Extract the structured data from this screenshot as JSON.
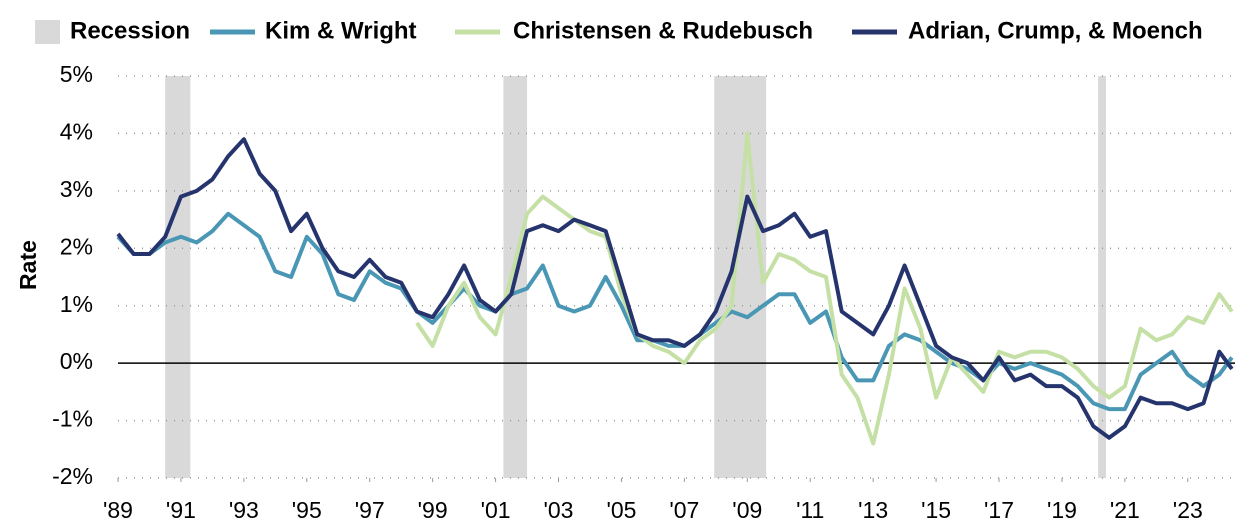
{
  "chart_data": {
    "type": "line",
    "y_label": "Rate",
    "recession_label": "Recession",
    "recession_color": "#d9d9d9",
    "recessions": [
      [
        1990.5,
        1991.3
      ],
      [
        2001.25,
        2002.0
      ],
      [
        2007.95,
        2009.6
      ],
      [
        2020.15,
        2020.4
      ]
    ],
    "xlim": [
      1989,
      2024.5
    ],
    "ylim": [
      -2,
      5
    ],
    "grid": true,
    "legend": "top",
    "xticks": [
      {
        "value": 1989,
        "label": "'89"
      },
      {
        "value": 1991,
        "label": "'91"
      },
      {
        "value": 1993,
        "label": "'93"
      },
      {
        "value": 1995,
        "label": "'95"
      },
      {
        "value": 1997,
        "label": "'97"
      },
      {
        "value": 1999,
        "label": "'99"
      },
      {
        "value": 2001,
        "label": "'01"
      },
      {
        "value": 2003,
        "label": "'03"
      },
      {
        "value": 2005,
        "label": "'05"
      },
      {
        "value": 2007,
        "label": "'07"
      },
      {
        "value": 2009,
        "label": "'09"
      },
      {
        "value": 2011,
        "label": "'11"
      },
      {
        "value": 2013,
        "label": "'13"
      },
      {
        "value": 2015,
        "label": "'15"
      },
      {
        "value": 2017,
        "label": "'17"
      },
      {
        "value": 2019,
        "label": "'19"
      },
      {
        "value": 2021,
        "label": "'21"
      },
      {
        "value": 2023,
        "label": "'23"
      }
    ],
    "yticks": [
      {
        "value": -2,
        "label": "-2%"
      },
      {
        "value": -1,
        "label": "-1%"
      },
      {
        "value": 0,
        "label": "0%"
      },
      {
        "value": 1,
        "label": "1%"
      },
      {
        "value": 2,
        "label": "2%"
      },
      {
        "value": 3,
        "label": "3%"
      },
      {
        "value": 4,
        "label": "4%"
      },
      {
        "value": 5,
        "label": "5%"
      }
    ],
    "x": [
      1989.0,
      1989.5,
      1990.0,
      1990.5,
      1991.0,
      1991.5,
      1992.0,
      1992.5,
      1993.0,
      1993.5,
      1994.0,
      1994.5,
      1995.0,
      1995.5,
      1996.0,
      1996.5,
      1997.0,
      1997.5,
      1998.0,
      1998.5,
      1999.0,
      1999.5,
      2000.0,
      2000.5,
      2001.0,
      2001.5,
      2002.0,
      2002.5,
      2003.0,
      2003.5,
      2004.0,
      2004.5,
      2005.0,
      2005.5,
      2006.0,
      2006.5,
      2007.0,
      2007.5,
      2008.0,
      2008.5,
      2009.0,
      2009.5,
      2010.0,
      2010.5,
      2011.0,
      2011.5,
      2012.0,
      2012.5,
      2013.0,
      2013.5,
      2014.0,
      2014.5,
      2015.0,
      2015.5,
      2016.0,
      2016.5,
      2017.0,
      2017.5,
      2018.0,
      2018.5,
      2019.0,
      2019.5,
      2020.0,
      2020.5,
      2021.0,
      2021.5,
      2022.0,
      2022.5,
      2023.0,
      2023.5,
      2024.0,
      2024.4
    ],
    "series": [
      {
        "name": "Kim & Wright",
        "color": "#4a97b5",
        "values": [
          2.2,
          1.9,
          1.9,
          2.1,
          2.2,
          2.1,
          2.3,
          2.6,
          2.4,
          2.2,
          1.6,
          1.5,
          2.2,
          1.9,
          1.2,
          1.1,
          1.6,
          1.4,
          1.3,
          0.9,
          0.7,
          1.0,
          1.3,
          1.0,
          0.9,
          1.2,
          1.3,
          1.7,
          1.0,
          0.9,
          1.0,
          1.5,
          1.0,
          0.4,
          0.4,
          0.3,
          0.3,
          0.5,
          0.7,
          0.9,
          0.8,
          1.0,
          1.2,
          1.2,
          0.7,
          0.9,
          0.1,
          -0.3,
          -0.3,
          0.3,
          0.5,
          0.4,
          0.2,
          0.0,
          -0.1,
          -0.3,
          0.0,
          -0.1,
          0.0,
          -0.1,
          -0.2,
          -0.4,
          -0.7,
          -0.8,
          -0.8,
          -0.2,
          0.0,
          0.2,
          -0.2,
          -0.4,
          -0.2,
          0.1
        ]
      },
      {
        "name": "Christensen & Rudebusch",
        "color": "#c5e0a5",
        "values": [
          null,
          null,
          null,
          null,
          null,
          null,
          null,
          null,
          null,
          null,
          null,
          null,
          null,
          null,
          null,
          null,
          null,
          null,
          null,
          0.7,
          0.3,
          1.0,
          1.4,
          0.8,
          0.5,
          1.5,
          2.6,
          2.9,
          2.7,
          2.5,
          2.3,
          2.2,
          1.2,
          0.5,
          0.3,
          0.2,
          0.0,
          0.4,
          0.6,
          1.0,
          4.0,
          1.4,
          1.9,
          1.8,
          1.6,
          1.5,
          -0.2,
          -0.6,
          -1.4,
          -0.2,
          1.3,
          0.6,
          -0.6,
          0.1,
          -0.2,
          -0.5,
          0.2,
          0.1,
          0.2,
          0.2,
          0.1,
          -0.1,
          -0.4,
          -0.6,
          -0.4,
          0.6,
          0.4,
          0.5,
          0.8,
          0.7,
          1.2,
          0.9
        ]
      },
      {
        "name": "Adrian, Crump, & Moench",
        "color": "#26346e",
        "values": [
          2.25,
          1.9,
          1.9,
          2.2,
          2.9,
          3.0,
          3.2,
          3.6,
          3.9,
          3.3,
          3.0,
          2.3,
          2.6,
          2.0,
          1.6,
          1.5,
          1.8,
          1.5,
          1.4,
          0.9,
          0.8,
          1.2,
          1.7,
          1.1,
          0.9,
          1.2,
          2.3,
          2.4,
          2.3,
          2.5,
          2.4,
          2.3,
          1.4,
          0.5,
          0.4,
          0.4,
          0.3,
          0.5,
          0.9,
          1.6,
          2.9,
          2.3,
          2.4,
          2.6,
          2.2,
          2.3,
          0.9,
          0.7,
          0.5,
          1.0,
          1.7,
          1.0,
          0.3,
          0.1,
          0.0,
          -0.3,
          0.1,
          -0.3,
          -0.2,
          -0.4,
          -0.4,
          -0.6,
          -1.1,
          -1.3,
          -1.1,
          -0.6,
          -0.7,
          -0.7,
          -0.8,
          -0.7,
          0.2,
          -0.1
        ]
      }
    ]
  }
}
